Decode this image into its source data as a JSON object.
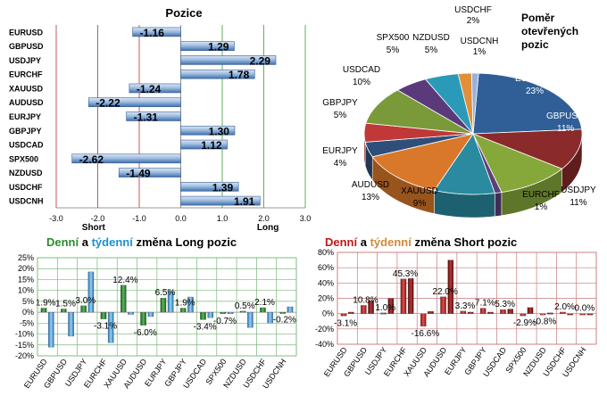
{
  "colors": {
    "bar_blue": "#5a86c2",
    "bar_blue_light": "#b8cfe8",
    "long_green": "#2e8b2e",
    "long_daily_green": "#1c7a1c",
    "long_weekly_blue": "#4a9fdc",
    "short_red": "#c01818",
    "short_weekly_orange": "#d08a3a",
    "axis_red": "#b03030",
    "axis_green": "#3a9a3a",
    "grid_green": "#7ab87a",
    "grid_red": "#c87a7a"
  },
  "chart_data": [
    {
      "type": "bar",
      "orientation": "horizontal",
      "title": "Pozice",
      "categories": [
        "EURUSD",
        "GBPUSD",
        "USDJPY",
        "EURCHF",
        "XAUUSD",
        "AUDUSD",
        "EURJPY",
        "GBPJPY",
        "USDCAD",
        "SPX500",
        "NZDUSD",
        "USDCHF",
        "USDCNH"
      ],
      "values": [
        -1.16,
        1.29,
        2.29,
        1.78,
        -1.24,
        -2.22,
        -1.31,
        1.3,
        1.12,
        -2.62,
        -1.49,
        1.39,
        1.91
      ],
      "value_labels": [
        "-1.16",
        "1.29",
        "2.29",
        "1.78",
        "-1.24",
        "-2.22",
        "-1.31",
        "1.30",
        "1.12",
        "-2.62",
        "-1.49",
        "1.39",
        "1.91"
      ],
      "xlim": [
        -3.0,
        3.0
      ],
      "xticks": [
        "-3.0",
        "-2.0",
        "-1.0",
        "0.0",
        "1.0",
        "2.0",
        "3.0"
      ],
      "annotations": [
        "Short",
        "Long"
      ]
    },
    {
      "type": "pie",
      "title": "Poměr otevřených pozic",
      "title_lines": [
        "Poměr",
        "otevřených",
        "pozic"
      ],
      "slices": [
        {
          "label": "EURUSD",
          "percent_label": "23%",
          "value": 23,
          "color": "#2f5f96"
        },
        {
          "label": "GBPUSD",
          "percent_label": "11%",
          "value": 11,
          "color": "#8a2a2a"
        },
        {
          "label": "USDJPY",
          "percent_label": "11%",
          "value": 11,
          "color": "#86a83a"
        },
        {
          "label": "EURCHF",
          "percent_label": "1%",
          "value": 1,
          "color": "#5b3f7a"
        },
        {
          "label": "XAUUSD",
          "percent_label": "9%",
          "value": 9,
          "color": "#2a8aa0"
        },
        {
          "label": "AUDUSD",
          "percent_label": "13%",
          "value": 13,
          "color": "#d9782a"
        },
        {
          "label": "EURJPY",
          "percent_label": "4%",
          "value": 4,
          "color": "#2f4f7a"
        },
        {
          "label": "GBPJPY",
          "percent_label": "5%",
          "value": 5,
          "color": "#c03838"
        },
        {
          "label": "USDCAD",
          "percent_label": "10%",
          "value": 10,
          "color": "#7a9a3a"
        },
        {
          "label": "SPX500",
          "percent_label": "5%",
          "value": 5,
          "color": "#5a3a7a"
        },
        {
          "label": "NZDUSD",
          "percent_label": "5%",
          "value": 5,
          "color": "#2a9ab8"
        },
        {
          "label": "USDCHF",
          "percent_label": "2%",
          "value": 2,
          "color": "#e0903a"
        },
        {
          "label": "USDCNH",
          "percent_label": "1%",
          "value": 1,
          "color": "#9ab0d8"
        }
      ]
    },
    {
      "type": "bar",
      "title_parts": [
        "Denní",
        " a ",
        "týdenní",
        " změna Long pozic"
      ],
      "categories": [
        "EURUSD",
        "GBPUSD",
        "USDJPY",
        "EURCHF",
        "XAUUSD",
        "AUDUSD",
        "EURJPY",
        "GBPJPY",
        "USDCAD",
        "SPX500",
        "NZDUSD",
        "USDCHF",
        "USDCNH"
      ],
      "series": [
        {
          "values": [
            1.9,
            1.5,
            3.0,
            -3.1,
            12.4,
            -6.0,
            6.5,
            1.9,
            -3.4,
            -0.7,
            0.5,
            2.1,
            -0.2
          ]
        },
        {
          "values": [
            -16.0,
            -11.0,
            18.5,
            -14.0,
            -1.0,
            -2.0,
            9.5,
            7.0,
            -2.5,
            -0.7,
            -7.0,
            -5.0,
            2.5
          ]
        }
      ],
      "data_labels": [
        "1.9%",
        "1.5%",
        "3.0%",
        "-3.1%",
        "12.4%",
        "-6.0%",
        "6.5%",
        "1.9%",
        "-3.4%",
        "-0.7%",
        "0.5%",
        "2.1%",
        "-0.2%"
      ],
      "ylim": [
        -20,
        25
      ],
      "yticks": [
        "25%",
        "20%",
        "15%",
        "10%",
        "5%",
        "0%",
        "-5%",
        "-10%",
        "-15%",
        "-20%"
      ]
    },
    {
      "type": "bar",
      "title_parts": [
        "Denní",
        " a ",
        "týdenní",
        " změna Short pozic"
      ],
      "categories": [
        "EURUSD",
        "GBPUSD",
        "USDJPY",
        "EURCHF",
        "XAUUSD",
        "AUDUSD",
        "EURJPY",
        "GBPJPY",
        "USDCAD",
        "SPX500",
        "NZDUSD",
        "USDCHF",
        "USDCNH"
      ],
      "series": [
        {
          "values": [
            -3.1,
            10.8,
            1.0,
            45.3,
            -16.6,
            22.0,
            3.3,
            7.1,
            5.3,
            -2.9,
            -0.8,
            2.0,
            0.0
          ]
        },
        {
          "values": [
            2.0,
            17.0,
            20.0,
            46.0,
            3.0,
            70.0,
            2.0,
            2.0,
            6.0,
            8.0,
            1.0,
            0.0,
            0.0
          ]
        }
      ],
      "data_labels": [
        "-3.1%",
        "10.8%",
        "1.0%",
        "45.3%",
        "-16.6%",
        "22.0%",
        "3.3%",
        "7.1%",
        "5.3%",
        "-2.9%",
        "-0.8%",
        "2.0%",
        "0.0%"
      ],
      "ylim": [
        -40,
        80
      ],
      "yticks": [
        "80%",
        "60%",
        "40%",
        "20%",
        "0%",
        "-20%",
        "-40%"
      ]
    }
  ]
}
